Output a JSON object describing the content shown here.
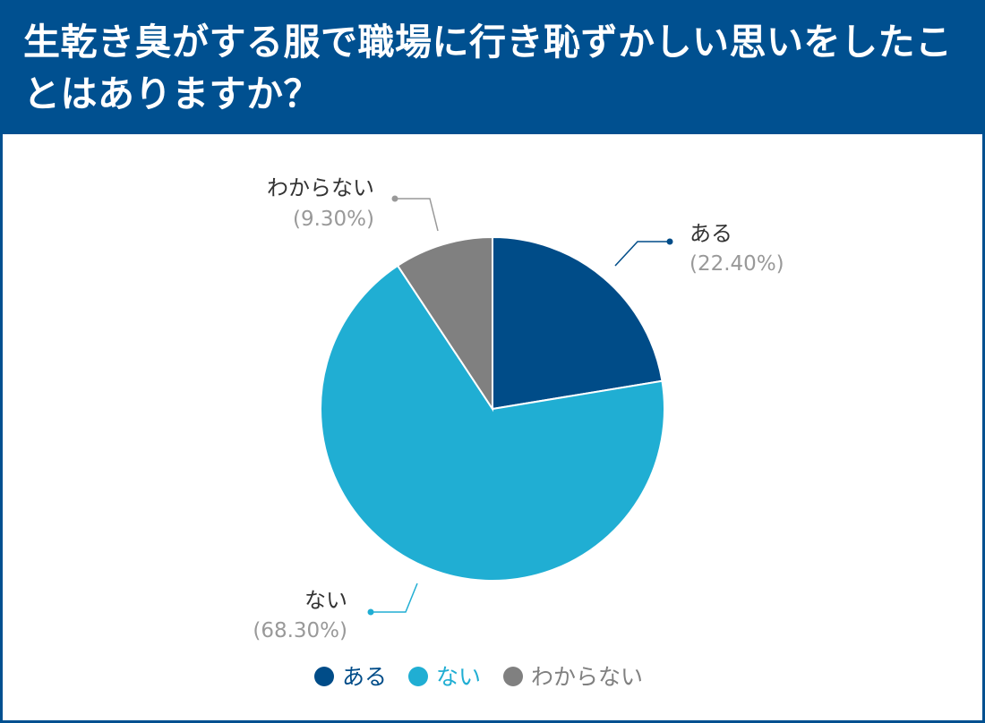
{
  "title": "生乾き臭がする服で職場に行き恥ずかしい思いをしたことはありますか？",
  "colors": {
    "header_bg": "#005090",
    "aru": "#004C88",
    "nai": "#20AED3",
    "wakaranai": "#808080"
  },
  "chart_data": {
    "type": "pie",
    "title": "生乾き臭がする服で職場に行き恥ずかしい思いをしたことはありますか？",
    "slices": [
      {
        "label": "ある",
        "value": 22.4,
        "pct_label": "(22.40%)",
        "color": "#004C88"
      },
      {
        "label": "ない",
        "value": 68.3,
        "pct_label": "(68.30%)",
        "color": "#20AED3"
      },
      {
        "label": "わからない",
        "value": 9.3,
        "pct_label": "(9.30%)",
        "color": "#808080"
      }
    ],
    "start_angle": "12 o'clock",
    "direction": "clockwise",
    "legend_position": "bottom"
  }
}
